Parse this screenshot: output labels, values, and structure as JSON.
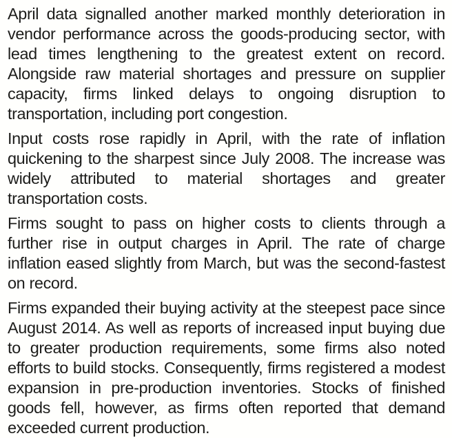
{
  "document": {
    "background_color": "#fffffd",
    "text_color": "#1d1d1b",
    "paragraphs": [
      "April data signalled another marked monthly deterioration in vendor performance across the goods-producing sector, with lead times lengthening to the greatest extent on record. Alongside raw material shortages and pressure on supplier capacity, firms linked delays to ongoing disruption to transportation, including port congestion.",
      "Input costs rose rapidly in April, with the rate of inflation quickening to the sharpest since July 2008. The increase was widely attributed to material shortages and greater transportation costs.",
      "Firms sought to pass on higher costs to clients through a further rise in output charges in April. The rate of charge inflation eased slightly from March, but was the second-fastest on record.",
      "Firms expanded their buying activity at the steepest pace since August 2014. As well as reports of increased input buying due to greater production requirements, some firms also noted efforts to build stocks. Consequently, firms registered a modest expansion in pre-production inventories. Stocks of finished goods fell, however, as firms often reported that demand exceeded current production."
    ]
  }
}
